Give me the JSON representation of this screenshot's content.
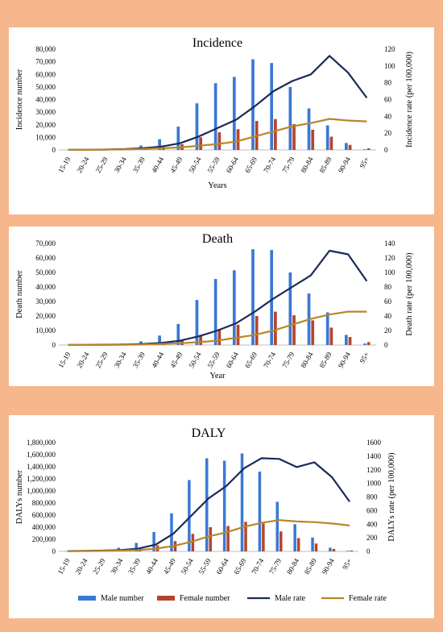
{
  "chart_data": [
    {
      "type": "bar",
      "title": "Incidence",
      "xlabel": "Years",
      "ylabel": "Incidence number",
      "y2label": "Incidence rate (per 100,000)",
      "categories": [
        "15-19",
        "20-24",
        "25-29",
        "30-34",
        "35-39",
        "40-44",
        "45-49",
        "50-54",
        "55-59",
        "60-64",
        "65-69",
        "70-74",
        "75-79",
        "80-84",
        "85-89",
        "90-94",
        "95+"
      ],
      "ylim": [
        0,
        80000
      ],
      "yticks": [
        "0",
        "10,000",
        "20,000",
        "30,000",
        "40,000",
        "50,000",
        "60,000",
        "70,000",
        "80,000"
      ],
      "y2lim": [
        0,
        120
      ],
      "y2ticks": [
        "0",
        "20",
        "40",
        "60",
        "80",
        "100",
        "120"
      ],
      "series": [
        {
          "name": "Male number",
          "kind": "bar",
          "axis": "left",
          "values": [
            0,
            100,
            300,
            1200,
            3500,
            8500,
            18500,
            37000,
            53000,
            58000,
            72000,
            69000,
            50000,
            33000,
            19500,
            5500,
            500
          ]
        },
        {
          "name": "Female number",
          "kind": "bar",
          "axis": "left",
          "values": [
            0,
            50,
            150,
            500,
            1200,
            2500,
            4500,
            10000,
            14000,
            16500,
            23000,
            24500,
            20500,
            16000,
            10500,
            4000,
            1200
          ]
        },
        {
          "name": "Male rate",
          "kind": "line",
          "axis": "right",
          "values": [
            0.1,
            0.2,
            0.5,
            1,
            2,
            4,
            8,
            16,
            26,
            36,
            52,
            70,
            82,
            90,
            112,
            92,
            62
          ]
        },
        {
          "name": "Female rate",
          "kind": "line",
          "axis": "right",
          "values": [
            0.05,
            0.1,
            0.3,
            0.6,
            1.2,
            2,
            3,
            5,
            7,
            10,
            16,
            22,
            28,
            32,
            37,
            35,
            34
          ]
        }
      ]
    },
    {
      "type": "bar",
      "title": "Death",
      "xlabel": "Year",
      "ylabel": "Death number",
      "y2label": "Death rate (per 100,000)",
      "categories": [
        "15-19",
        "20-24",
        "25-29",
        "30-34",
        "35-39",
        "40-44",
        "45-49",
        "50-54",
        "55-59",
        "60-64",
        "65-69",
        "70-74",
        "75-79",
        "80-84",
        "85-89",
        "90-94",
        "95+"
      ],
      "ylim": [
        0,
        70000
      ],
      "yticks": [
        "0",
        "10,000",
        "20,000",
        "30,000",
        "40,000",
        "50,000",
        "60,000",
        "70,000"
      ],
      "y2lim": [
        0,
        140
      ],
      "y2ticks": [
        "0",
        "20",
        "40",
        "60",
        "80",
        "100",
        "120",
        "140"
      ],
      "series": [
        {
          "name": "Male number",
          "kind": "bar",
          "axis": "left",
          "values": [
            0,
            100,
            300,
            1000,
            2500,
            6500,
            14500,
            31000,
            45500,
            51500,
            66000,
            65500,
            50000,
            35500,
            22500,
            7000,
            1000
          ]
        },
        {
          "name": "Female number",
          "kind": "bar",
          "axis": "left",
          "values": [
            0,
            50,
            100,
            300,
            800,
            1800,
            3500,
            7000,
            11000,
            14000,
            20000,
            23000,
            20500,
            17000,
            12000,
            5500,
            2000
          ]
        },
        {
          "name": "Male rate",
          "kind": "line",
          "axis": "right",
          "values": [
            0.1,
            0.2,
            0.4,
            0.8,
            1.5,
            3,
            6,
            12,
            20,
            30,
            46,
            64,
            80,
            96,
            130,
            125,
            88
          ]
        },
        {
          "name": "Female rate",
          "kind": "line",
          "axis": "right",
          "values": [
            0.05,
            0.1,
            0.2,
            0.4,
            0.8,
            1.5,
            2.5,
            4,
            6,
            10,
            14,
            20,
            28,
            36,
            42,
            46,
            46
          ]
        }
      ]
    },
    {
      "type": "bar",
      "title": "DALY",
      "xlabel": "",
      "ylabel": "DALYs number",
      "y2label": "DALYs rate (per 100,000)",
      "categories": [
        "15-19",
        "20-24",
        "25-29",
        "30-34",
        "35-39",
        "40-44",
        "45-49",
        "50-54",
        "55-59",
        "60-64",
        "65-69",
        "70-74",
        "75-79",
        "80-84",
        "85-89",
        "90-94",
        "95+"
      ],
      "ylim": [
        0,
        1800000
      ],
      "yticks": [
        "0",
        "200,000",
        "400,000",
        "600,000",
        "800,000",
        "1,000,000",
        "1,200,000",
        "1,400,000",
        "1,600,000",
        "1,800,000"
      ],
      "y2lim": [
        0,
        1600
      ],
      "y2ticks": [
        "0",
        "200",
        "400",
        "600",
        "800",
        "1000",
        "1200",
        "1400",
        "1600"
      ],
      "series": [
        {
          "name": "Male number",
          "kind": "bar",
          "axis": "left",
          "values": [
            3000,
            8000,
            25000,
            60000,
            140000,
            320000,
            630000,
            1180000,
            1540000,
            1500000,
            1620000,
            1320000,
            820000,
            450000,
            230000,
            60000,
            10000
          ]
        },
        {
          "name": "Female number",
          "kind": "bar",
          "axis": "left",
          "values": [
            2000,
            5000,
            12000,
            25000,
            55000,
            100000,
            170000,
            290000,
            400000,
            420000,
            490000,
            460000,
            330000,
            220000,
            130000,
            40000,
            15000
          ]
        },
        {
          "name": "Male rate",
          "kind": "line",
          "axis": "right",
          "values": [
            5,
            8,
            12,
            20,
            40,
            100,
            260,
            520,
            780,
            960,
            1220,
            1370,
            1360,
            1240,
            1310,
            1090,
            730
          ]
        },
        {
          "name": "Female rate",
          "kind": "line",
          "axis": "right",
          "values": [
            3,
            5,
            8,
            12,
            20,
            40,
            80,
            140,
            220,
            280,
            360,
            420,
            460,
            440,
            430,
            410,
            380
          ]
        }
      ]
    }
  ],
  "legend": {
    "male_number": "Male number",
    "female_number": "Female number",
    "male_rate": "Male rate",
    "female_rate": "Female rate",
    "position": "bottom"
  },
  "colors": {
    "male_bar": "#3a78d4",
    "female_bar": "#b4452c",
    "male_line": "#1a2a5a",
    "female_line": "#b8862a",
    "background": "#f6b78c"
  }
}
